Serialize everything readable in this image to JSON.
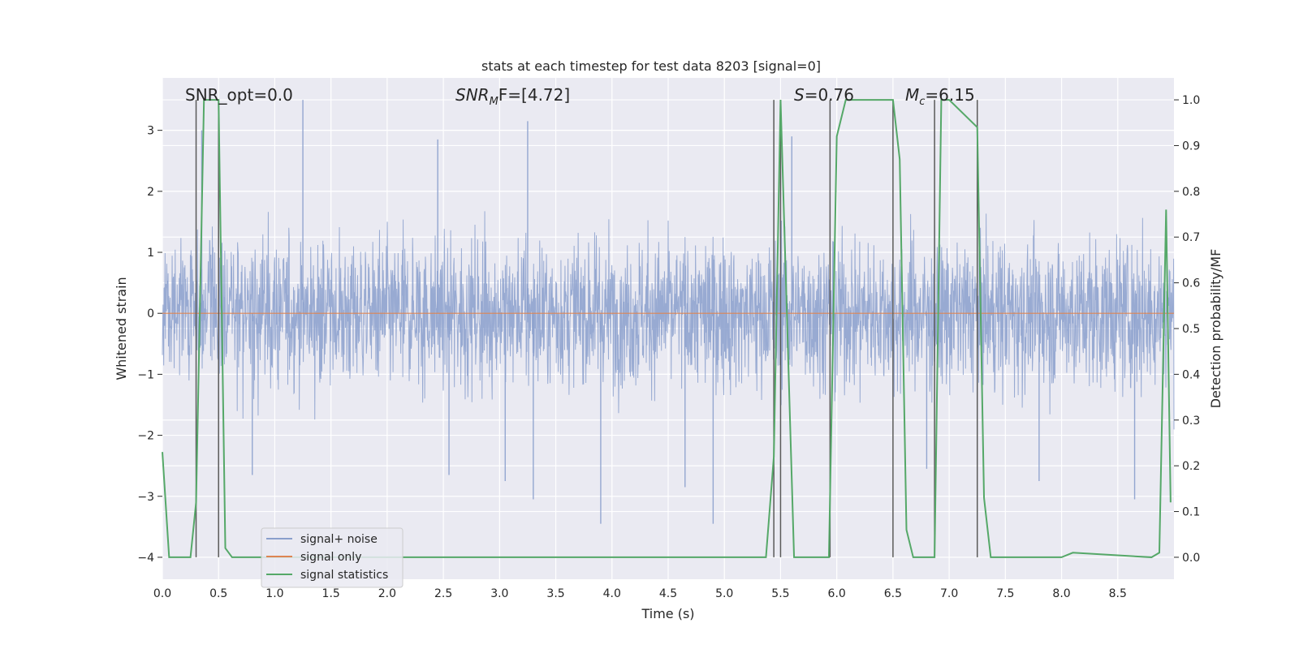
{
  "chart_data": {
    "type": "line",
    "title": "stats at each timestep for test data 8203 [signal=0]",
    "xlabel": "Time (s)",
    "ylabel": "Whitened strain",
    "y2label": "Detection probability/MF",
    "xlim": [
      0.0,
      9.0
    ],
    "ylim": [
      -4.36,
      3.86
    ],
    "y2lim": [
      -0.048,
      1.048
    ],
    "xticks": [
      "0.0",
      "0.5",
      "1.0",
      "1.5",
      "2.0",
      "2.5",
      "3.0",
      "3.5",
      "4.0",
      "4.5",
      "5.0",
      "5.5",
      "6.0",
      "6.5",
      "7.0",
      "7.5",
      "8.0",
      "8.5"
    ],
    "yticks": [
      "3",
      "2",
      "1",
      "0",
      "−1",
      "−2",
      "−3",
      "−4"
    ],
    "y2ticks": [
      "1.0",
      "0.9",
      "0.8",
      "0.7",
      "0.6",
      "0.5",
      "0.4",
      "0.3",
      "0.2",
      "0.1",
      "0.0"
    ],
    "grid": true,
    "legend_position": "lower-left",
    "annotations": {
      "snr_opt": "SNR_opt=0.0",
      "snr_mf_label": "SNR",
      "snr_mf_sub": "M",
      "snr_mf_rest": "F=[4.72]",
      "s_label": "S",
      "s_rest": "=0.76",
      "mc_label": "M",
      "mc_sub": "c",
      "mc_rest": "=6.15"
    },
    "series": [
      {
        "name": "signal+ noise",
        "color": "#8a9fcc",
        "description_values": "whitened noise, dense band roughly within [-1.7, 1.7] with spikes to about 3.5 and -3.5",
        "spikes": [
          [
            1.25,
            3.5
          ],
          [
            3.25,
            3.15
          ],
          [
            0.35,
            3.0
          ],
          [
            2.45,
            2.85
          ],
          [
            5.6,
            2.9
          ],
          [
            3.9,
            -3.45
          ],
          [
            4.9,
            -3.45
          ],
          [
            3.3,
            -3.05
          ],
          [
            0.8,
            -2.65
          ],
          [
            3.05,
            -2.75
          ],
          [
            8.65,
            -3.05
          ],
          [
            4.65,
            -2.85
          ],
          [
            6.8,
            -2.55
          ],
          [
            2.55,
            -2.65
          ],
          [
            7.8,
            -2.75
          ]
        ]
      },
      {
        "name": "signal only",
        "color": "#dd8452",
        "values_description": "flat zero line",
        "x": [
          0.0,
          9.0
        ],
        "y": [
          0.0,
          0.0
        ]
      },
      {
        "name": "signal statistics",
        "color": "#55a868",
        "axis": "right",
        "x": [
          0.0,
          0.06,
          0.25,
          0.3,
          0.37,
          0.44,
          0.5,
          0.56,
          0.62,
          0.7,
          5.37,
          5.44,
          5.5,
          5.56,
          5.62,
          5.75,
          5.93,
          6.0,
          6.08,
          6.5,
          6.56,
          6.62,
          6.68,
          6.75,
          6.87,
          6.93,
          7.0,
          7.25,
          7.31,
          7.37,
          7.45,
          8.0,
          8.1,
          8.8,
          8.87,
          8.93,
          8.97
        ],
        "y": [
          0.23,
          0.0,
          0.0,
          0.12,
          1.0,
          1.0,
          1.0,
          0.02,
          0.0,
          0.0,
          0.0,
          0.22,
          1.0,
          0.5,
          0.0,
          0.0,
          0.0,
          0.92,
          1.0,
          1.0,
          0.87,
          0.06,
          0.0,
          0.0,
          0.0,
          1.0,
          1.0,
          0.94,
          0.13,
          0.0,
          0.0,
          0.0,
          0.01,
          0.0,
          0.01,
          0.76,
          0.12
        ]
      }
    ],
    "vlines_x": [
      0.3,
      0.5,
      5.44,
      5.5,
      5.94,
      6.5,
      6.87,
      7.25
    ],
    "vlines_color": "#5a5a5a",
    "background_color": "#eaeaf2"
  }
}
